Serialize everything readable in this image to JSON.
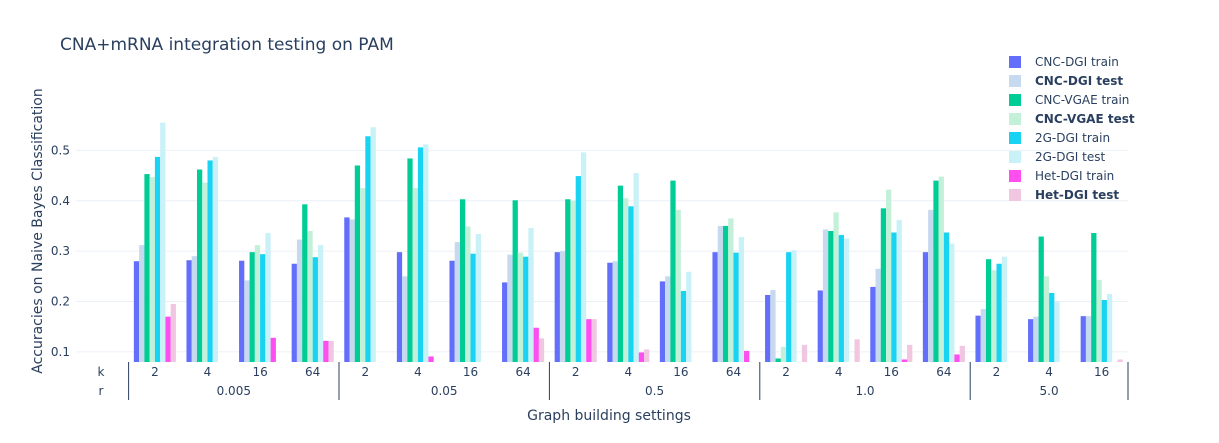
{
  "chart_data": {
    "type": "bar",
    "title": "CNA+mRNA integration testing on PAM",
    "xlabel": "Graph building settings",
    "ylabel": "Accuracies on Naive Bayes Classification",
    "ylim": [
      0.08,
      0.6
    ],
    "yticks": [
      "0.1",
      "0.2",
      "0.3",
      "0.4",
      "0.5"
    ],
    "ytick_values": [
      0.1,
      0.2,
      0.3,
      0.4,
      0.5
    ],
    "grid": true,
    "legend_position": "top-right",
    "multicategory_names": [
      "k",
      "r"
    ],
    "groups": [
      {
        "label": "0.005",
        "ks": [
          "2",
          "4",
          "16",
          "64"
        ]
      },
      {
        "label": "0.05",
        "ks": [
          "2",
          "4",
          "16",
          "64"
        ]
      },
      {
        "label": "0.5",
        "ks": [
          "2",
          "4",
          "16",
          "64"
        ]
      },
      {
        "label": "1.0",
        "ks": [
          "2",
          "4",
          "16",
          "64"
        ]
      },
      {
        "label": "5.0",
        "ks": [
          "2",
          "4",
          "16"
        ]
      }
    ],
    "series": [
      {
        "name": "CNC-DGI train",
        "color": "#636efa",
        "bold": false,
        "values": [
          0.28,
          0.282,
          0.281,
          0.275,
          0.367,
          0.298,
          0.281,
          0.238,
          0.298,
          0.277,
          0.24,
          0.298,
          0.213,
          0.222,
          0.229,
          0.298,
          0.172,
          0.165,
          0.171
        ]
      },
      {
        "name": "CNC-DGI test",
        "color": "#c6d9ef",
        "bold": true,
        "values": [
          0.312,
          0.29,
          0.242,
          0.323,
          0.363,
          0.25,
          0.318,
          0.293,
          0.3,
          0.28,
          0.25,
          0.35,
          0.223,
          0.343,
          0.265,
          0.382,
          0.185,
          0.17,
          0.171
        ]
      },
      {
        "name": "CNC-VGAE train",
        "color": "#00cc96",
        "bold": false,
        "values": [
          0.453,
          0.462,
          0.298,
          0.393,
          0.47,
          0.484,
          0.403,
          0.401,
          0.403,
          0.43,
          0.44,
          0.35,
          0.087,
          0.34,
          0.385,
          0.44,
          0.284,
          0.329,
          0.336
        ]
      },
      {
        "name": "CNC-VGAE test",
        "color": "#c2f0d8",
        "bold": true,
        "values": [
          0.447,
          0.436,
          0.312,
          0.34,
          0.425,
          0.425,
          0.349,
          0.297,
          0.4,
          0.405,
          0.382,
          0.365,
          0.11,
          0.377,
          0.422,
          0.448,
          0.262,
          0.25,
          0.243
        ]
      },
      {
        "name": "2G-DGI train",
        "color": "#19d3f3",
        "bold": false,
        "values": [
          0.487,
          0.48,
          0.294,
          0.288,
          0.528,
          0.506,
          0.295,
          0.289,
          0.449,
          0.389,
          0.221,
          0.297,
          0.298,
          0.332,
          0.337,
          0.337,
          0.275,
          0.217,
          0.203
        ]
      },
      {
        "name": "2G-DGI test",
        "color": "#c9f1f8",
        "bold": false,
        "values": [
          0.555,
          0.487,
          0.336,
          0.312,
          0.546,
          0.512,
          0.334,
          0.346,
          0.496,
          0.455,
          0.259,
          0.328,
          0.302,
          0.325,
          0.362,
          0.315,
          0.289,
          0.2,
          0.215
        ]
      },
      {
        "name": "Het-DGI train",
        "color": "#ff4ef0",
        "bold": false,
        "values": [
          0.17,
          null,
          0.128,
          0.122,
          null,
          0.091,
          null,
          0.148,
          0.165,
          0.099,
          null,
          0.102,
          null,
          null,
          0.085,
          0.095,
          null,
          null,
          null
        ]
      },
      {
        "name": "Het-DGI test",
        "color": "#f0c6e0",
        "bold": true,
        "values": [
          0.195,
          null,
          null,
          0.122,
          null,
          null,
          null,
          0.127,
          0.165,
          0.105,
          null,
          null,
          0.114,
          0.125,
          0.114,
          0.112,
          null,
          null,
          0.085
        ]
      }
    ]
  }
}
